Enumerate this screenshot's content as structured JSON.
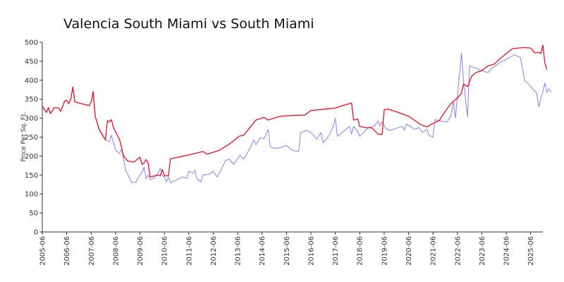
{
  "chart_data": {
    "type": "line",
    "title": "Valencia South Miami vs South Miami",
    "xlabel": "",
    "ylabel": "Price Per Sq. Ft.",
    "xlim": [
      "2005-06",
      "2025-12"
    ],
    "ylim": [
      0,
      500
    ],
    "yticks": [
      0,
      50,
      100,
      150,
      200,
      250,
      300,
      350,
      400,
      450,
      500
    ],
    "xticks": [
      "2005-06",
      "2006-06",
      "2007-06",
      "2008-06",
      "2009-06",
      "2010-06",
      "2011-06",
      "2012-06",
      "2013-06",
      "2014-06",
      "2015-06",
      "2016-06",
      "2017-06",
      "2018-06",
      "2019-06",
      "2020-06",
      "2021-06",
      "2022-06",
      "2023-06",
      "2024-06",
      "2025-06"
    ],
    "grid": false,
    "legend": "none",
    "series": [
      {
        "color": "#e8102a",
        "points": [
          [
            "2005-06",
            332
          ],
          [
            "2005-08",
            315
          ],
          [
            "2005-09",
            328
          ],
          [
            "2005-10",
            312
          ],
          [
            "2005-12",
            328
          ],
          [
            "2006-02",
            327
          ],
          [
            "2006-03",
            318
          ],
          [
            "2006-05",
            345
          ],
          [
            "2006-06",
            347
          ],
          [
            "2006-07",
            338
          ],
          [
            "2006-08",
            350
          ],
          [
            "2006-09",
            382
          ],
          [
            "2006-10",
            343
          ],
          [
            "2006-12",
            340
          ],
          [
            "2007-03",
            336
          ],
          [
            "2007-05",
            333
          ],
          [
            "2007-06",
            342
          ],
          [
            "2007-07",
            370
          ],
          [
            "2007-08",
            305
          ],
          [
            "2007-10",
            270
          ],
          [
            "2008-01",
            243
          ],
          [
            "2008-02",
            294
          ],
          [
            "2008-03",
            290
          ],
          [
            "2008-04",
            296
          ],
          [
            "2008-05",
            275
          ],
          [
            "2008-08",
            243
          ],
          [
            "2008-10",
            200
          ],
          [
            "2008-12",
            187
          ],
          [
            "2009-03",
            184
          ],
          [
            "2009-06",
            197
          ],
          [
            "2009-07",
            178
          ],
          [
            "2009-08",
            182
          ],
          [
            "2009-09",
            191
          ],
          [
            "2009-10",
            182
          ],
          [
            "2009-11",
            145
          ],
          [
            "2010-03",
            150
          ],
          [
            "2010-04",
            148
          ],
          [
            "2010-05",
            165
          ],
          [
            "2010-06",
            148
          ],
          [
            "2010-08",
            148
          ],
          [
            "2010-09",
            193
          ],
          [
            "2011-06",
            203
          ],
          [
            "2012-01",
            212
          ],
          [
            "2012-03",
            205
          ],
          [
            "2012-09",
            215
          ],
          [
            "2013-02",
            232
          ],
          [
            "2013-07",
            253
          ],
          [
            "2013-09",
            255
          ],
          [
            "2014-03",
            295
          ],
          [
            "2014-07",
            302
          ],
          [
            "2014-09",
            295
          ],
          [
            "2015-03",
            305
          ],
          [
            "2015-09",
            307
          ],
          [
            "2016-03",
            308
          ],
          [
            "2016-06",
            320
          ],
          [
            "2017-03",
            325
          ],
          [
            "2017-06",
            327
          ],
          [
            "2017-09",
            332
          ],
          [
            "2018-02",
            340
          ],
          [
            "2018-03",
            295
          ],
          [
            "2018-05",
            298
          ],
          [
            "2018-06",
            278
          ],
          [
            "2018-09",
            275
          ],
          [
            "2018-12",
            274
          ],
          [
            "2019-03",
            258
          ],
          [
            "2019-05",
            257
          ],
          [
            "2019-06",
            322
          ],
          [
            "2019-08",
            324
          ],
          [
            "2019-12",
            317
          ],
          [
            "2020-06",
            305
          ],
          [
            "2020-12",
            283
          ],
          [
            "2021-03",
            277
          ],
          [
            "2021-06",
            286
          ],
          [
            "2021-09",
            293
          ],
          [
            "2021-12",
            318
          ],
          [
            "2022-03",
            340
          ],
          [
            "2022-06",
            353
          ],
          [
            "2022-08",
            366
          ],
          [
            "2022-09",
            390
          ],
          [
            "2022-11",
            383
          ],
          [
            "2023-01",
            410
          ],
          [
            "2023-03",
            420
          ],
          [
            "2023-06",
            425
          ],
          [
            "2023-09",
            438
          ],
          [
            "2023-12",
            442
          ],
          [
            "2024-03",
            457
          ],
          [
            "2024-06",
            470
          ],
          [
            "2024-09",
            483
          ],
          [
            "2024-12",
            485
          ],
          [
            "2025-03",
            486
          ],
          [
            "2025-06",
            485
          ],
          [
            "2025-08",
            472
          ],
          [
            "2025-10",
            474
          ],
          [
            "2025-11",
            470
          ],
          [
            "2025-12",
            493
          ],
          [
            "2026-01",
            445
          ],
          [
            "2026-02",
            428
          ]
        ]
      },
      {
        "color": "#8a8ef0",
        "points": [
          [
            "2005-06",
            332
          ],
          [
            "2005-08",
            315
          ],
          [
            "2005-09",
            328
          ],
          [
            "2005-10",
            312
          ],
          [
            "2005-12",
            328
          ],
          [
            "2006-02",
            327
          ],
          [
            "2006-03",
            318
          ],
          [
            "2006-05",
            345
          ],
          [
            "2006-06",
            347
          ],
          [
            "2006-07",
            338
          ],
          [
            "2006-08",
            350
          ],
          [
            "2006-09",
            382
          ],
          [
            "2006-10",
            343
          ],
          [
            "2006-12",
            340
          ],
          [
            "2007-03",
            336
          ],
          [
            "2007-05",
            333
          ],
          [
            "2007-06",
            342
          ],
          [
            "2007-07",
            370
          ],
          [
            "2007-08",
            305
          ],
          [
            "2007-10",
            268
          ],
          [
            "2008-01",
            243
          ],
          [
            "2008-03",
            238
          ],
          [
            "2008-04",
            255
          ],
          [
            "2008-06",
            216
          ],
          [
            "2008-08",
            207
          ],
          [
            "2008-09",
            220
          ],
          [
            "2008-11",
            162
          ],
          [
            "2009-02",
            130
          ],
          [
            "2009-04",
            131
          ],
          [
            "2009-05",
            143
          ],
          [
            "2009-07",
            157
          ],
          [
            "2009-08",
            170
          ],
          [
            "2009-09",
            140
          ],
          [
            "2009-10",
            150
          ],
          [
            "2009-11",
            138
          ],
          [
            "2010-01",
            142
          ],
          [
            "2010-02",
            150
          ],
          [
            "2010-03",
            155
          ],
          [
            "2010-04",
            168
          ],
          [
            "2010-05",
            148
          ],
          [
            "2010-06",
            145
          ],
          [
            "2010-07",
            132
          ],
          [
            "2010-08",
            145
          ],
          [
            "2010-09",
            130
          ],
          [
            "2011-01",
            140
          ],
          [
            "2011-03",
            145
          ],
          [
            "2011-05",
            142
          ],
          [
            "2011-06",
            160
          ],
          [
            "2011-08",
            155
          ],
          [
            "2011-09",
            163
          ],
          [
            "2011-10",
            140
          ],
          [
            "2011-12",
            132
          ],
          [
            "2012-01",
            150
          ],
          [
            "2012-04",
            152
          ],
          [
            "2012-06",
            160
          ],
          [
            "2012-08",
            145
          ],
          [
            "2012-10",
            165
          ],
          [
            "2012-12",
            188
          ],
          [
            "2013-02",
            192
          ],
          [
            "2013-04",
            178
          ],
          [
            "2013-07",
            202
          ],
          [
            "2013-09",
            192
          ],
          [
            "2013-12",
            220
          ],
          [
            "2014-02",
            243
          ],
          [
            "2014-03",
            230
          ],
          [
            "2014-05",
            248
          ],
          [
            "2014-07",
            246
          ],
          [
            "2014-09",
            270
          ],
          [
            "2014-10",
            225
          ],
          [
            "2014-12",
            220
          ],
          [
            "2015-03",
            222
          ],
          [
            "2015-06",
            228
          ],
          [
            "2015-09",
            215
          ],
          [
            "2015-12",
            212
          ],
          [
            "2016-01",
            262
          ],
          [
            "2016-04",
            268
          ],
          [
            "2016-06",
            262
          ],
          [
            "2016-09",
            245
          ],
          [
            "2016-11",
            262
          ],
          [
            "2016-12",
            235
          ],
          [
            "2017-03",
            255
          ],
          [
            "2017-05",
            278
          ],
          [
            "2017-06",
            300
          ],
          [
            "2017-07",
            252
          ],
          [
            "2017-10",
            265
          ],
          [
            "2018-01",
            278
          ],
          [
            "2018-02",
            258
          ],
          [
            "2018-03",
            278
          ],
          [
            "2018-05",
            265
          ],
          [
            "2018-06",
            252
          ],
          [
            "2018-08",
            262
          ],
          [
            "2018-10",
            275
          ],
          [
            "2019-01",
            278
          ],
          [
            "2019-03",
            292
          ],
          [
            "2019-04",
            280
          ],
          [
            "2019-05",
            290
          ],
          [
            "2019-07",
            272
          ],
          [
            "2019-09",
            268
          ],
          [
            "2020-01",
            275
          ],
          [
            "2020-03",
            278
          ],
          [
            "2020-04",
            268
          ],
          [
            "2020-05",
            285
          ],
          [
            "2020-09",
            270
          ],
          [
            "2020-11",
            275
          ],
          [
            "2021-01",
            262
          ],
          [
            "2021-03",
            271
          ],
          [
            "2021-04",
            255
          ],
          [
            "2021-06",
            250
          ],
          [
            "2021-07",
            296
          ],
          [
            "2021-10",
            292
          ],
          [
            "2022-01",
            290
          ],
          [
            "2022-03",
            308
          ],
          [
            "2022-04",
            345
          ],
          [
            "2022-05",
            300
          ],
          [
            "2022-08",
            472
          ],
          [
            "2022-09",
            400
          ],
          [
            "2022-11",
            303
          ],
          [
            "2022-12",
            437
          ],
          [
            "2023-03",
            432
          ],
          [
            "2023-06",
            425
          ],
          [
            "2023-09",
            420
          ],
          [
            "2023-11",
            432
          ],
          [
            "2024-03",
            447
          ],
          [
            "2024-06",
            455
          ],
          [
            "2024-10",
            467
          ],
          [
            "2025-01",
            460
          ],
          [
            "2025-03",
            400
          ],
          [
            "2025-05",
            390
          ],
          [
            "2025-07",
            377
          ],
          [
            "2025-09",
            365
          ],
          [
            "2025-10",
            330
          ],
          [
            "2025-12",
            370
          ],
          [
            "2026-01",
            393
          ],
          [
            "2026-02",
            368
          ],
          [
            "2026-03",
            378
          ],
          [
            "2026-04",
            368
          ]
        ]
      }
    ]
  }
}
